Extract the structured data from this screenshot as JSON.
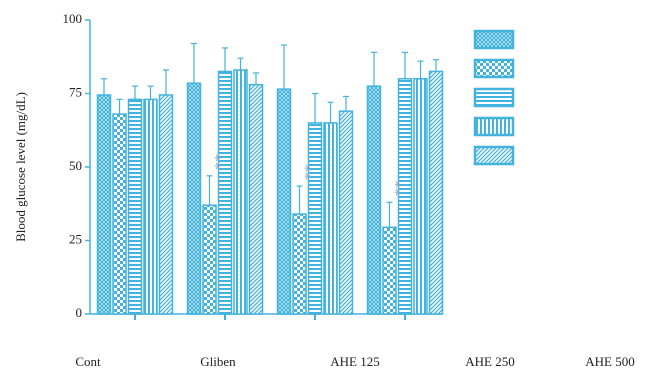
{
  "chart_data": {
    "type": "bar",
    "y_label": "Blood glucose level (mg/dL)",
    "categories": [
      null,
      null,
      null,
      null
    ],
    "x_labels": [
      "Cont",
      "Gliben",
      "AHE 125",
      "AHE 250",
      "AHE 500"
    ],
    "color": "#42b3dc",
    "ylim": [
      0,
      100
    ],
    "yticks": [
      0,
      25,
      50,
      75,
      100
    ],
    "series": [
      {
        "pattern": "crosshatch",
        "values": [
          74.5,
          78.5,
          76.5,
          77.5
        ],
        "errors": [
          5.5,
          13.5,
          15,
          11.5
        ]
      },
      {
        "pattern": "checker",
        "values": [
          68,
          37,
          34,
          29.5
        ],
        "errors": [
          5,
          10,
          9.5,
          8.5
        ]
      },
      {
        "pattern": "horizontal",
        "values": [
          73,
          82.5,
          65,
          80
        ],
        "errors": [
          4.5,
          8,
          10,
          9
        ]
      },
      {
        "pattern": "vertical",
        "values": [
          73,
          83,
          65,
          80
        ],
        "errors": [
          4.5,
          4,
          7,
          6
        ]
      },
      {
        "pattern": "diagonal",
        "values": [
          74.5,
          78,
          69,
          82.5
        ],
        "errors": [
          8.5,
          4,
          5,
          4
        ]
      }
    ],
    "annotations": [
      {
        "text": "**",
        "category": 1,
        "series": 1
      },
      {
        "text": "**",
        "category": 2,
        "series": 1
      },
      {
        "text": "**",
        "category": 3,
        "series": 1
      }
    ]
  }
}
